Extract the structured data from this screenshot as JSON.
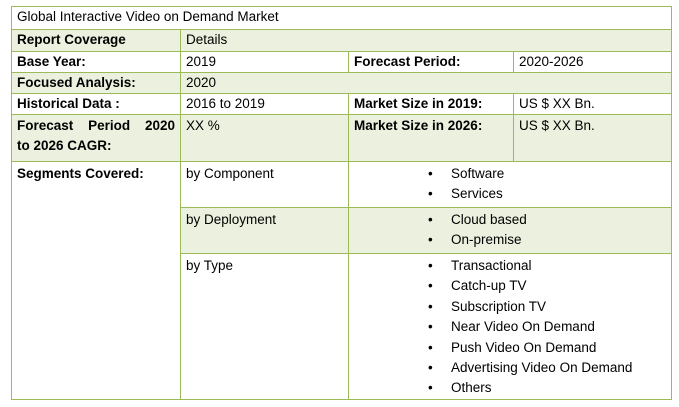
{
  "title": "Global Interactive Video on Demand Market",
  "header": {
    "coverage": "Report Coverage",
    "details": "Details"
  },
  "base_year": {
    "label": "Base Year:",
    "value": "2019"
  },
  "forecast_period": {
    "label": "Forecast Period:",
    "value": "2020-2026"
  },
  "focused_analysis": {
    "label": "Focused Analysis:",
    "value": "2020"
  },
  "historical_data": {
    "label": "Historical Data :",
    "value": "2016 to 2019"
  },
  "market_size_2019": {
    "label": "Market Size in 2019:",
    "value": "US $ XX Bn."
  },
  "cagr": {
    "label_line1": "Forecast Period 2020",
    "label_line2": "to 2026 CAGR:",
    "value": "XX %"
  },
  "market_size_2026": {
    "label": "Market Size in 2026:",
    "value": "US $ XX Bn."
  },
  "segments": {
    "label": "Segments Covered:",
    "bullet": "•",
    "groups": [
      {
        "name": "by Component",
        "items": [
          "Software",
          "Services"
        ]
      },
      {
        "name": "by Deployment",
        "items": [
          "Cloud based",
          "On-premise"
        ]
      },
      {
        "name": "by Type",
        "items": [
          "Transactional",
          "Catch-up TV",
          "Subscription TV",
          "Near Video On Demand",
          "Push Video On Demand",
          "Advertising Video On Demand",
          "Others"
        ]
      }
    ]
  }
}
